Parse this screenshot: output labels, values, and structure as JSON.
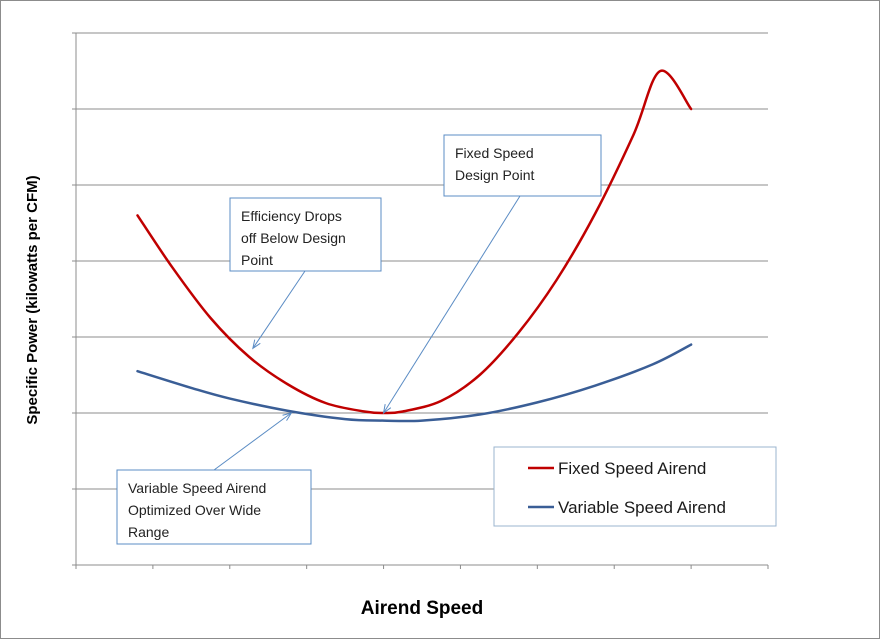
{
  "chart_data": {
    "type": "line",
    "title": "",
    "xlabel": "Airend Speed",
    "ylabel": "Specific Power (kilowatts per CFM)",
    "xlim": [
      0,
      9
    ],
    "ylim": [
      0,
      7
    ],
    "grid": true,
    "tick_labels_shown": false,
    "legend_position": "bottom-right",
    "series": [
      {
        "name": "Fixed Speed Airend",
        "color": "#c00000",
        "x": [
          0.8,
          1.25,
          1.75,
          2.25,
          2.75,
          3.25,
          3.75,
          4.0,
          4.25,
          4.75,
          5.25,
          5.75,
          6.25,
          6.75,
          7.25,
          7.6,
          8.0
        ],
        "y": [
          4.6,
          3.92,
          3.25,
          2.74,
          2.38,
          2.13,
          2.02,
          2.0,
          2.02,
          2.16,
          2.5,
          3.05,
          3.75,
          4.62,
          5.66,
          6.5,
          6.0
        ]
      },
      {
        "name": "Variable Speed Airend",
        "color": "#3a5e96",
        "x": [
          0.8,
          1.5,
          2.0,
          2.75,
          3.5,
          4.0,
          4.5,
          5.25,
          6.0,
          6.75,
          7.5,
          8.0
        ],
        "y": [
          2.55,
          2.33,
          2.19,
          2.03,
          1.92,
          1.9,
          1.9,
          1.98,
          2.14,
          2.36,
          2.64,
          2.9
        ]
      }
    ],
    "annotations": [
      {
        "lines": [
          "Fixed Speed",
          "Design Point"
        ],
        "x": 4.0,
        "y": 2.0
      },
      {
        "lines": [
          "Efficiency Drops",
          "off Below Design",
          "Point"
        ],
        "x": 2.3,
        "y": 2.85
      },
      {
        "lines": [
          "Variable Speed Airend",
          "Optimized Over Wide",
          "Range"
        ],
        "x": 2.8,
        "y": 2.0
      }
    ]
  }
}
